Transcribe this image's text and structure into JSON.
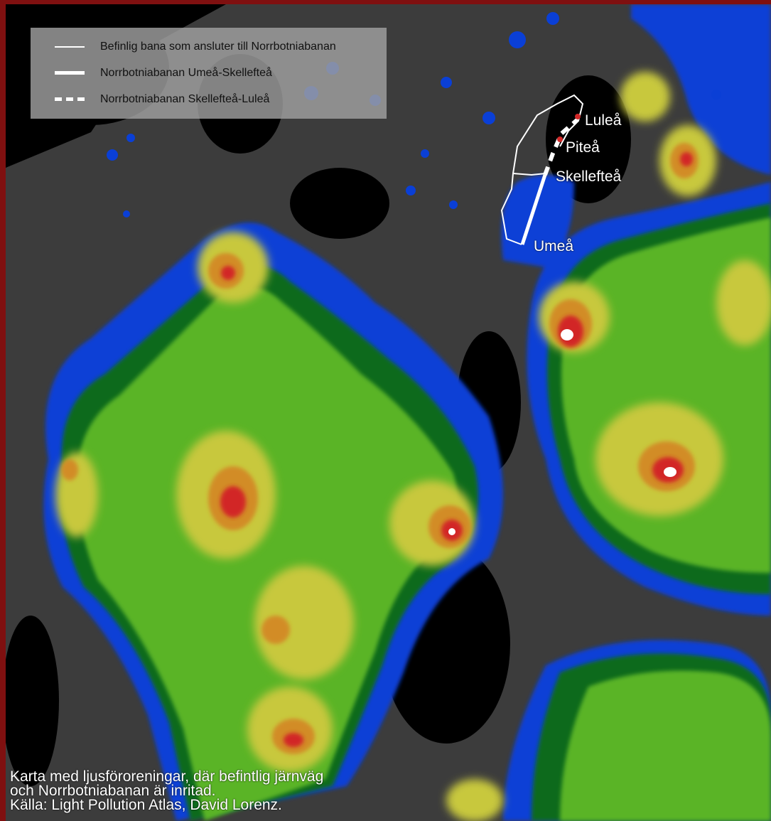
{
  "legend": {
    "items": [
      {
        "label": "Befinlig bana som ansluter till Norrbotniabanan",
        "icon": "thin-solid-line-icon"
      },
      {
        "label": "Norrbotniabanan Umeå-Skellefteå",
        "icon": "thick-solid-line-icon"
      },
      {
        "label": "Norrbotniabanan Skellefteå-Luleå",
        "icon": "dashed-line-icon"
      }
    ]
  },
  "cities": {
    "lulea": "Luleå",
    "pitea": "Piteå",
    "skelleftea": "Skellefteå",
    "umea": "Umeå"
  },
  "caption": {
    "line1": "Karta med ljusföroreningar, där befintlig järnväg",
    "line2": "och Norrbotniabanan är inritad.",
    "line3": "Källa: Light Pollution Atlas, David Lorenz."
  },
  "colors": {
    "frame": "#7f1010",
    "dark": "#000000",
    "gray": "#3c3c3c",
    "darkblue": "#0a1c6e",
    "blue": "#0a3fd6",
    "darkgreen": "#0f6a1a",
    "green": "#5ab428",
    "yellow": "#c8c83c",
    "orange": "#d28c28",
    "red": "#d22828",
    "white": "#ffffff",
    "railway": "#ffffff"
  }
}
